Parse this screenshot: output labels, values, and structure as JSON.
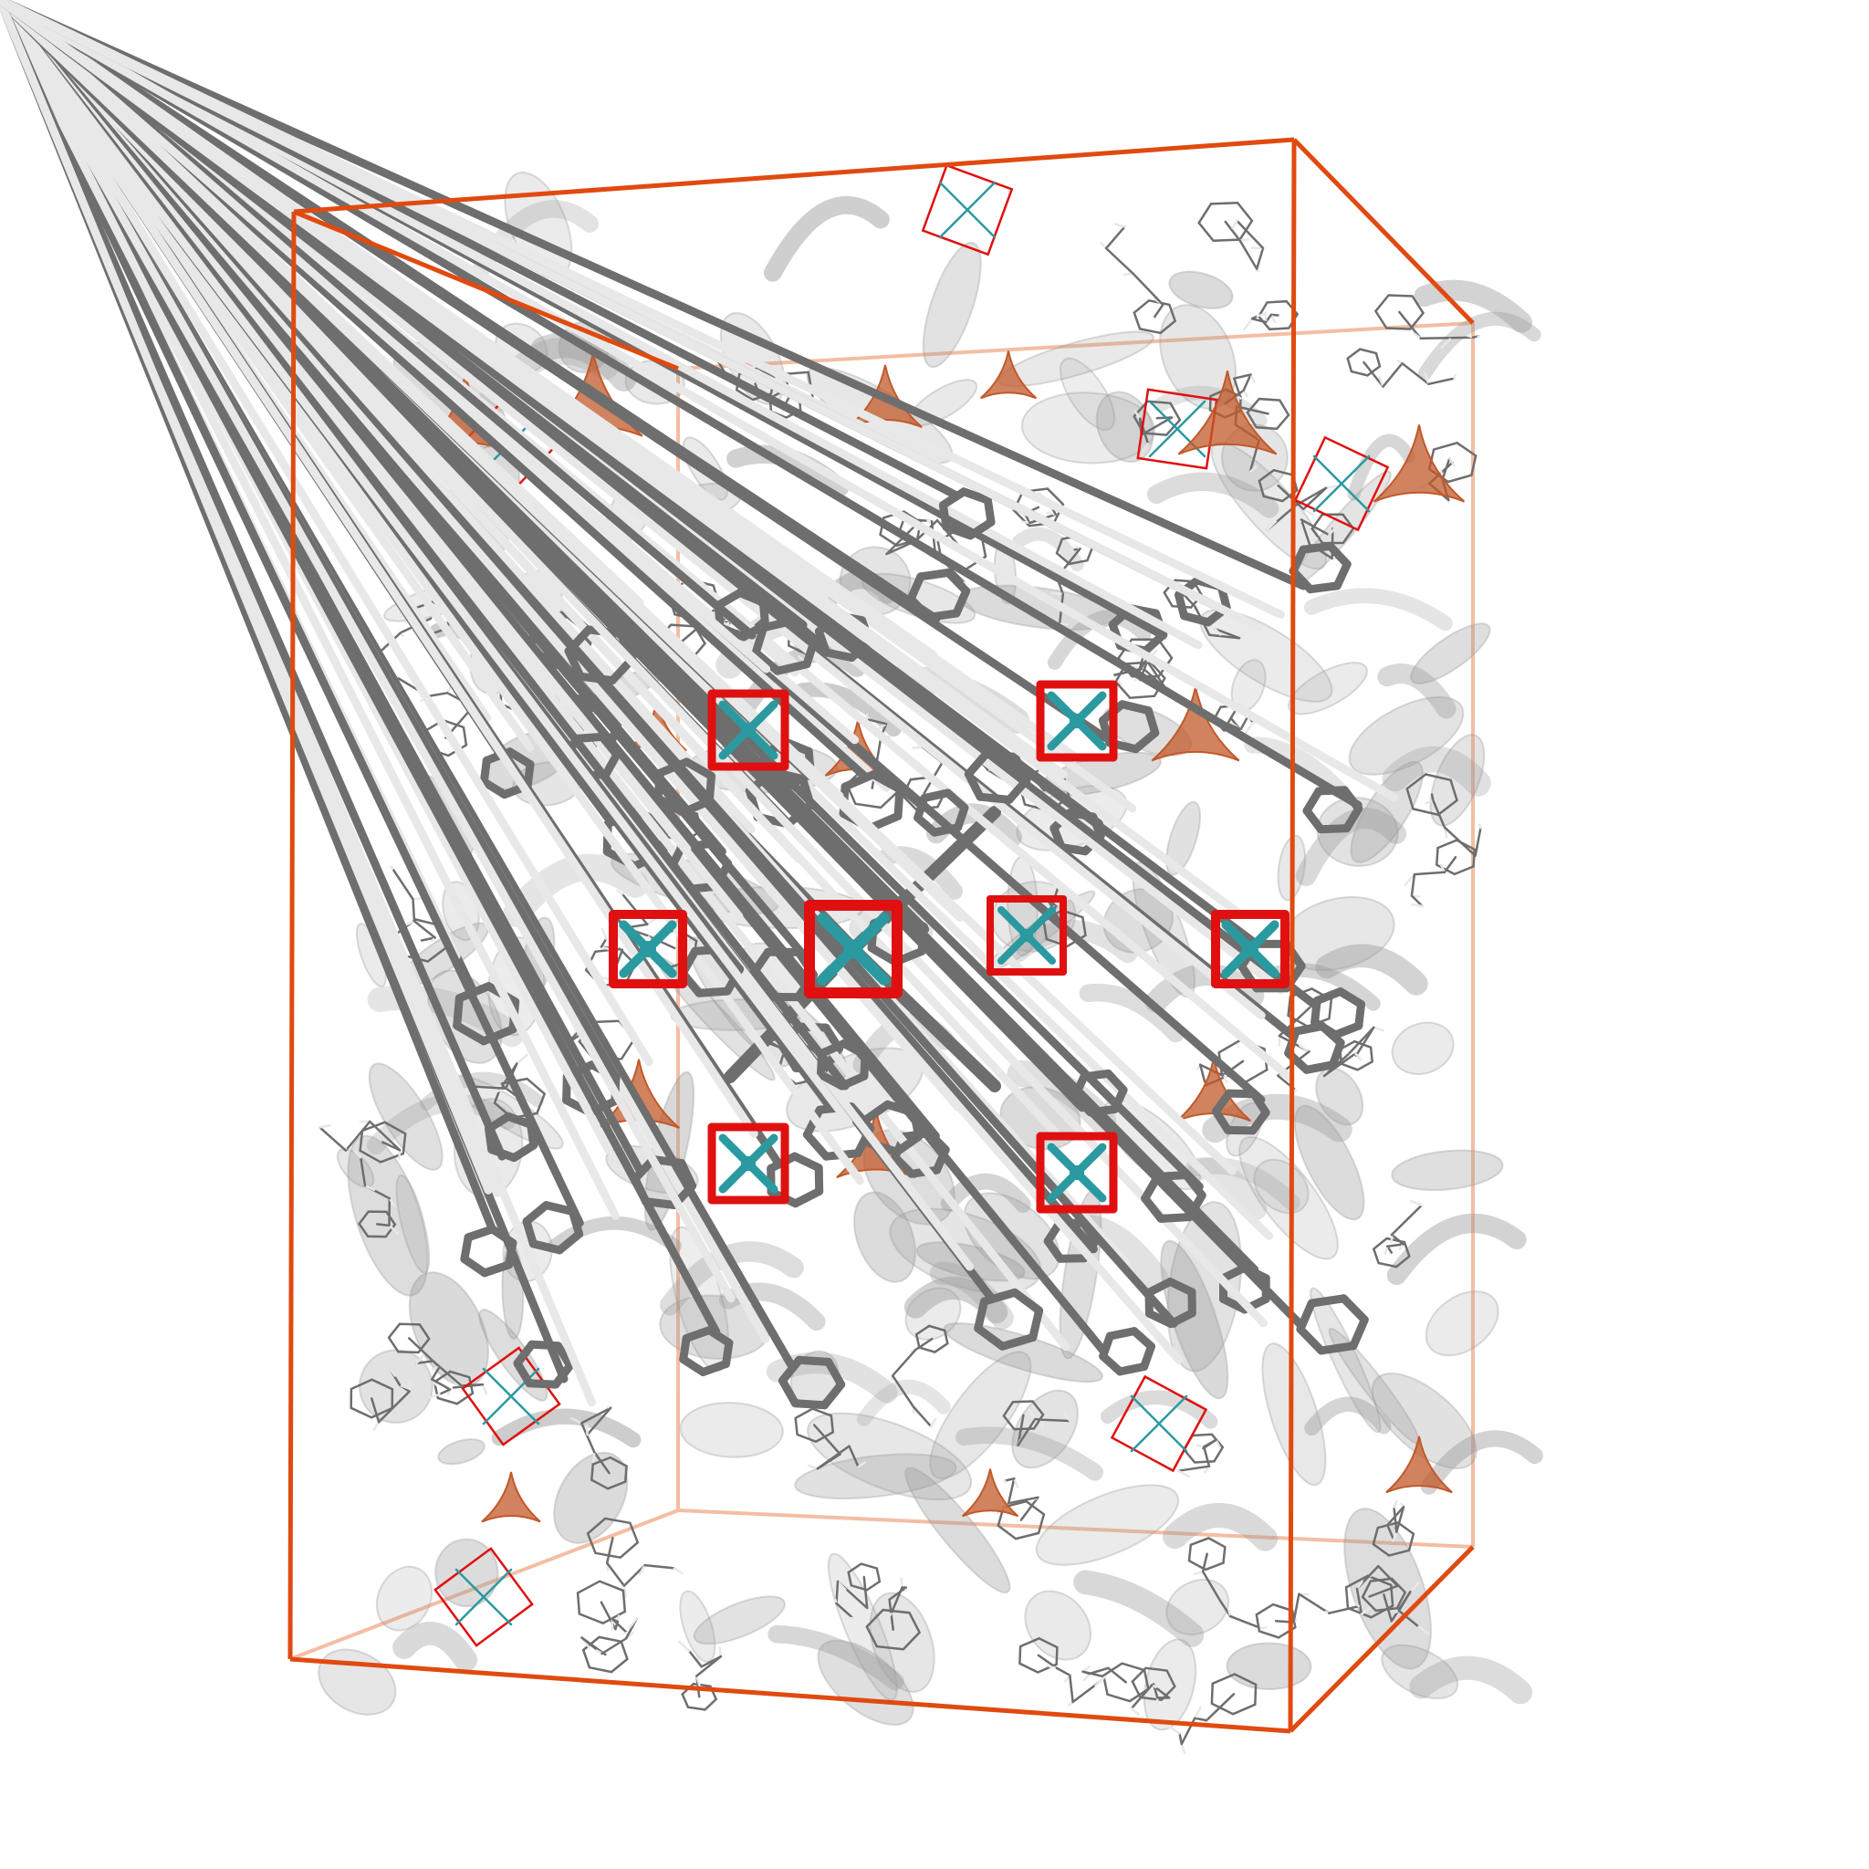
{
  "scene": {
    "kind": "molecular-structure-render",
    "background": "#ffffff",
    "colors": {
      "cell_edge": "#e04a10",
      "cell_edge_back": "#f0a27c",
      "isosurface": "#9a9a9a",
      "isosurface_accent": "#c2592a",
      "carbon": "#6e6e6e",
      "hydrogen": "#e8e8e8",
      "oxygen": "#e01010",
      "metal": "#2a9aa0"
    }
  }
}
